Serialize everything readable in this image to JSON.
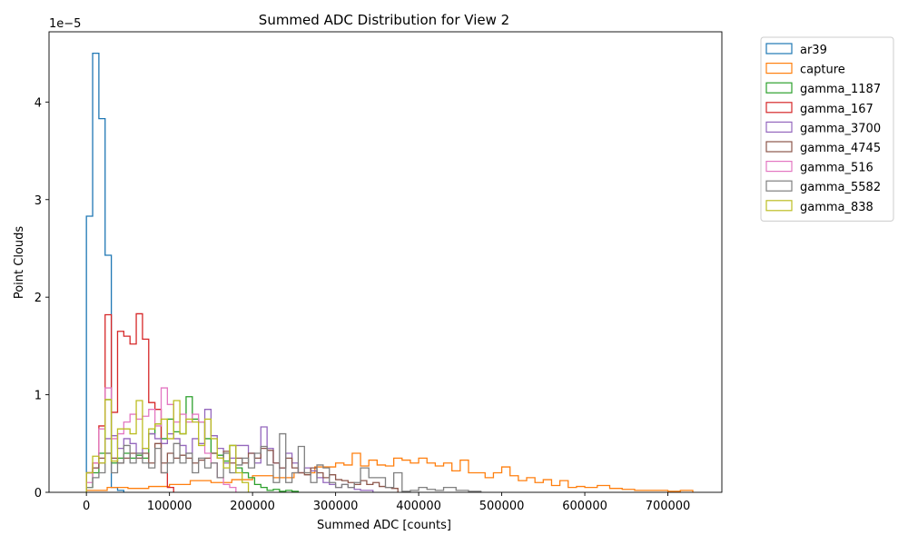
{
  "chart_data": {
    "type": "step-histogram",
    "title": "Summed ADC Distribution for View 2",
    "xlabel": "Summed ADC [counts]",
    "ylabel": "Point Clouds",
    "y_offset_label": "1e−5",
    "y_scale": 1e-05,
    "xlim": [
      -45000,
      765000
    ],
    "ylim": [
      0,
      4.72
    ],
    "x_ticks": [
      0,
      100000,
      200000,
      300000,
      400000,
      500000,
      600000,
      700000
    ],
    "y_ticks": [
      0,
      1,
      2,
      3,
      4
    ],
    "legend": {
      "placement": "outside-right"
    },
    "series": [
      {
        "name": "ar39",
        "color": "#1f77b4",
        "edges": [
          0,
          7500,
          15000,
          22500,
          30000,
          37500,
          45000
        ],
        "values": [
          2.83,
          4.5,
          3.83,
          2.43,
          0.05,
          0.02
        ]
      },
      {
        "name": "capture",
        "color": "#ff7f0e",
        "x": [
          0,
          25000,
          50000,
          75000,
          100000,
          125000,
          150000,
          175000,
          200000,
          225000,
          250000,
          275000,
          300000,
          310000,
          320000,
          330000,
          340000,
          350000,
          360000,
          370000,
          380000,
          390000,
          400000,
          410000,
          420000,
          430000,
          440000,
          450000,
          460000,
          470000,
          480000,
          490000,
          500000,
          510000,
          520000,
          530000,
          540000,
          550000,
          560000,
          570000,
          580000,
          590000,
          600000,
          615000,
          630000,
          645000,
          660000,
          680000,
          700000,
          715000,
          730000
        ],
        "values": [
          0.02,
          0.05,
          0.04,
          0.06,
          0.08,
          0.12,
          0.1,
          0.13,
          0.17,
          0.15,
          0.2,
          0.26,
          0.3,
          0.28,
          0.4,
          0.27,
          0.33,
          0.28,
          0.27,
          0.35,
          0.33,
          0.3,
          0.35,
          0.3,
          0.27,
          0.3,
          0.22,
          0.33,
          0.2,
          0.2,
          0.15,
          0.2,
          0.26,
          0.17,
          0.12,
          0.15,
          0.1,
          0.13,
          0.07,
          0.12,
          0.05,
          0.06,
          0.05,
          0.07,
          0.04,
          0.03,
          0.02,
          0.02,
          0.01,
          0.02
        ]
      },
      {
        "name": "gamma_1187",
        "color": "#2ca02c",
        "x": [
          0,
          7500,
          15000,
          22500,
          30000,
          37500,
          45000,
          52500,
          60000,
          67500,
          75000,
          82500,
          90000,
          97500,
          105000,
          112500,
          120000,
          127500,
          135000,
          142500,
          150000,
          157500,
          165000,
          172500,
          180000,
          187500,
          195000,
          202500,
          210000,
          217500,
          225000,
          232500,
          240000,
          247500,
          255000
        ],
        "values": [
          0.05,
          0.2,
          0.4,
          0.95,
          0.3,
          0.35,
          0.4,
          0.35,
          0.38,
          0.35,
          0.6,
          0.7,
          0.55,
          0.75,
          0.62,
          0.6,
          0.98,
          0.75,
          0.72,
          0.55,
          0.4,
          0.38,
          0.32,
          0.48,
          0.25,
          0.2,
          0.15,
          0.08,
          0.05,
          0.02,
          0.03,
          0.01,
          0.02,
          0.01
        ]
      },
      {
        "name": "gamma_167",
        "color": "#d62728",
        "x": [
          0,
          7500,
          15000,
          22500,
          30000,
          37500,
          45000,
          52500,
          60000,
          67500,
          75000,
          82500,
          90000,
          97500,
          105000
        ],
        "values": [
          0.2,
          0.3,
          0.68,
          1.82,
          0.82,
          1.65,
          1.6,
          1.52,
          1.83,
          1.57,
          0.92,
          0.85,
          0.2,
          0.05
        ]
      },
      {
        "name": "gamma_3700",
        "color": "#9467bd",
        "x": [
          0,
          7500,
          15000,
          22500,
          30000,
          37500,
          45000,
          52500,
          60000,
          67500,
          75000,
          82500,
          90000,
          97500,
          105000,
          112500,
          120000,
          127500,
          135000,
          142500,
          150000,
          157500,
          165000,
          172500,
          180000,
          187500,
          195000,
          202500,
          210000,
          217500,
          225000,
          232500,
          240000,
          247500,
          255000,
          262500,
          270000,
          277500,
          285000,
          292500,
          300000,
          307500,
          315000,
          322500,
          330000,
          337500,
          345000
        ],
        "values": [
          0.2,
          0.25,
          0.3,
          0.55,
          0.58,
          0.45,
          0.55,
          0.5,
          0.4,
          0.45,
          0.6,
          0.55,
          0.5,
          0.6,
          0.55,
          0.48,
          0.4,
          0.55,
          0.5,
          0.85,
          0.58,
          0.45,
          0.3,
          0.35,
          0.48,
          0.48,
          0.4,
          0.3,
          0.67,
          0.45,
          0.3,
          0.25,
          0.4,
          0.3,
          0.2,
          0.25,
          0.22,
          0.15,
          0.1,
          0.08,
          0.05,
          0.08,
          0.05,
          0.03,
          0.02,
          0.02
        ]
      },
      {
        "name": "gamma_4745",
        "color": "#8c564b",
        "x": [
          0,
          7500,
          15000,
          22500,
          30000,
          37500,
          45000,
          52500,
          60000,
          67500,
          75000,
          82500,
          90000,
          97500,
          105000,
          112500,
          120000,
          127500,
          135000,
          142500,
          150000,
          157500,
          165000,
          172500,
          180000,
          187500,
          195000,
          202500,
          210000,
          217500,
          225000,
          232500,
          240000,
          247500,
          255000,
          262500,
          270000,
          277500,
          285000,
          292500,
          300000,
          307500,
          315000,
          322500,
          330000,
          337500,
          345000,
          352500,
          360000,
          367500,
          375000
        ],
        "values": [
          0.2,
          0.25,
          0.35,
          0.4,
          0.35,
          0.3,
          0.35,
          0.4,
          0.35,
          0.4,
          0.3,
          0.5,
          0.3,
          0.4,
          0.35,
          0.38,
          0.35,
          0.3,
          0.33,
          0.35,
          0.4,
          0.35,
          0.42,
          0.3,
          0.35,
          0.3,
          0.4,
          0.35,
          0.45,
          0.43,
          0.3,
          0.25,
          0.35,
          0.25,
          0.2,
          0.18,
          0.25,
          0.2,
          0.15,
          0.18,
          0.13,
          0.12,
          0.1,
          0.08,
          0.12,
          0.08,
          0.1,
          0.06,
          0.05,
          0.04
        ]
      },
      {
        "name": "gamma_516",
        "color": "#e377c2",
        "x": [
          0,
          7500,
          15000,
          22500,
          30000,
          37500,
          45000,
          52500,
          60000,
          67500,
          75000,
          82500,
          90000,
          97500,
          105000,
          112500,
          120000,
          127500,
          135000,
          142500,
          150000,
          157500,
          165000,
          172500,
          180000
        ],
        "values": [
          0.1,
          0.3,
          0.65,
          1.07,
          0.55,
          0.6,
          0.72,
          0.8,
          0.75,
          0.78,
          0.85,
          0.68,
          1.07,
          0.9,
          0.72,
          0.8,
          0.72,
          0.8,
          0.72,
          0.4,
          0.3,
          0.15,
          0.08,
          0.05
        ]
      },
      {
        "name": "gamma_5582",
        "color": "#7f7f7f",
        "x": [
          0,
          7500,
          15000,
          22500,
          30000,
          37500,
          45000,
          52500,
          60000,
          67500,
          75000,
          82500,
          90000,
          97500,
          105000,
          112500,
          120000,
          127500,
          135000,
          142500,
          150000,
          157500,
          165000,
          172500,
          180000,
          187500,
          195000,
          202500,
          210000,
          217500,
          225000,
          232500,
          240000,
          247500,
          255000,
          262500,
          270000,
          277500,
          285000,
          292500,
          300000,
          307500,
          315000,
          322500,
          330000,
          340000,
          350000,
          360000,
          370000,
          380000,
          390000,
          400000,
          410000,
          420000,
          430000,
          445000,
          460000,
          475000
        ],
        "values": [
          0.05,
          0.15,
          0.2,
          0.4,
          0.2,
          0.3,
          0.48,
          0.3,
          0.4,
          0.3,
          0.25,
          0.45,
          0.2,
          0.3,
          0.5,
          0.3,
          0.4,
          0.2,
          0.35,
          0.25,
          0.3,
          0.15,
          0.4,
          0.2,
          0.28,
          0.35,
          0.25,
          0.4,
          0.47,
          0.28,
          0.1,
          0.6,
          0.1,
          0.2,
          0.47,
          0.2,
          0.1,
          0.28,
          0.25,
          0.1,
          0.05,
          0.08,
          0.05,
          0.1,
          0.25,
          0.15,
          0.15,
          0.05,
          0.2,
          0.01,
          0.02,
          0.05,
          0.03,
          0.02,
          0.05,
          0.02,
          0.01
        ]
      },
      {
        "name": "gamma_838",
        "color": "#bcbd22",
        "x": [
          0,
          7500,
          15000,
          22500,
          30000,
          37500,
          45000,
          52500,
          60000,
          67500,
          75000,
          82500,
          90000,
          97500,
          105000,
          112500,
          120000,
          127500,
          135000,
          142500,
          150000,
          157500,
          165000,
          172500,
          180000,
          187500,
          195000
        ],
        "values": [
          0.2,
          0.37,
          0.3,
          0.95,
          0.32,
          0.65,
          0.65,
          0.6,
          0.94,
          0.45,
          0.65,
          0.7,
          0.75,
          0.55,
          0.94,
          0.6,
          0.75,
          0.72,
          0.48,
          0.75,
          0.55,
          0.35,
          0.25,
          0.48,
          0.2,
          0.1
        ]
      }
    ]
  }
}
